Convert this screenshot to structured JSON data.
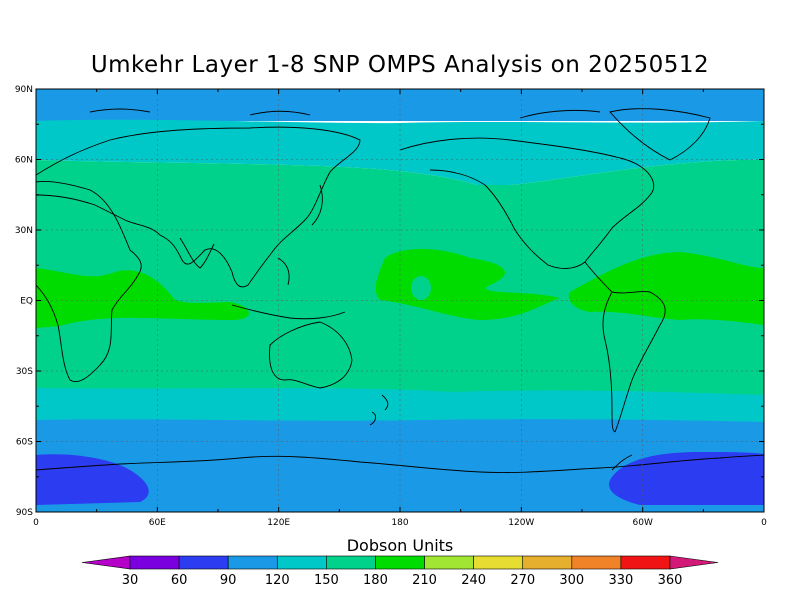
{
  "title": "Umkehr Layer 1-8 SNP OMPS Analysis on 20250512",
  "axes": {
    "lat_labels": [
      "90N",
      "60N",
      "30N",
      "EQ",
      "30S",
      "60S",
      "90S"
    ],
    "lon_labels": [
      "0",
      "60E",
      "120E",
      "180",
      "120W",
      "60W",
      "0"
    ]
  },
  "colorbar": {
    "title": "Dobson Units",
    "tick_labels": [
      "30",
      "60",
      "90",
      "120",
      "150",
      "180",
      "210",
      "240",
      "270",
      "300",
      "330",
      "360"
    ],
    "colors": [
      "#b400c8",
      "#7a00e0",
      "#2c3cf0",
      "#1a9ae6",
      "#00c8c8",
      "#00d28c",
      "#00dc00",
      "#a0e632",
      "#e6dc32",
      "#e6af2d",
      "#f08228",
      "#f01414",
      "#d21978"
    ]
  },
  "chart_data": {
    "type": "heatmap",
    "title": "Umkehr Layer 1-8 SNP OMPS Analysis on 20250512",
    "units": "Dobson Units",
    "x_range": [
      0,
      360
    ],
    "y_range": [
      -90,
      90
    ],
    "levels": [
      30,
      60,
      90,
      120,
      150,
      180,
      210,
      240,
      270,
      300,
      330,
      360
    ],
    "bands": [
      {
        "lat_range": [
          76,
          90
        ],
        "value_range": [
          90,
          120
        ]
      },
      {
        "lat_range": [
          66,
          76
        ],
        "value_range": [
          120,
          150
        ]
      },
      {
        "lat_range": [
          55,
          66
        ],
        "value_range": [
          150,
          180
        ]
      },
      {
        "lat_range": [
          15,
          55
        ],
        "value_range": [
          180,
          210
        ]
      },
      {
        "lat_range": [
          -10,
          15
        ],
        "value_range": [
          210,
          240
        ]
      },
      {
        "lat_range": [
          -35,
          -10
        ],
        "value_range": [
          180,
          210
        ]
      },
      {
        "lat_range": [
          -52,
          -35
        ],
        "value_range": [
          150,
          180
        ]
      },
      {
        "lat_range": [
          -62,
          -52
        ],
        "value_range": [
          120,
          150
        ]
      },
      {
        "lat_range": [
          -72,
          -62
        ],
        "value_range": [
          90,
          120
        ]
      },
      {
        "lat_range": [
          -90,
          -72
        ],
        "value_range": [
          60,
          90
        ]
      }
    ]
  }
}
